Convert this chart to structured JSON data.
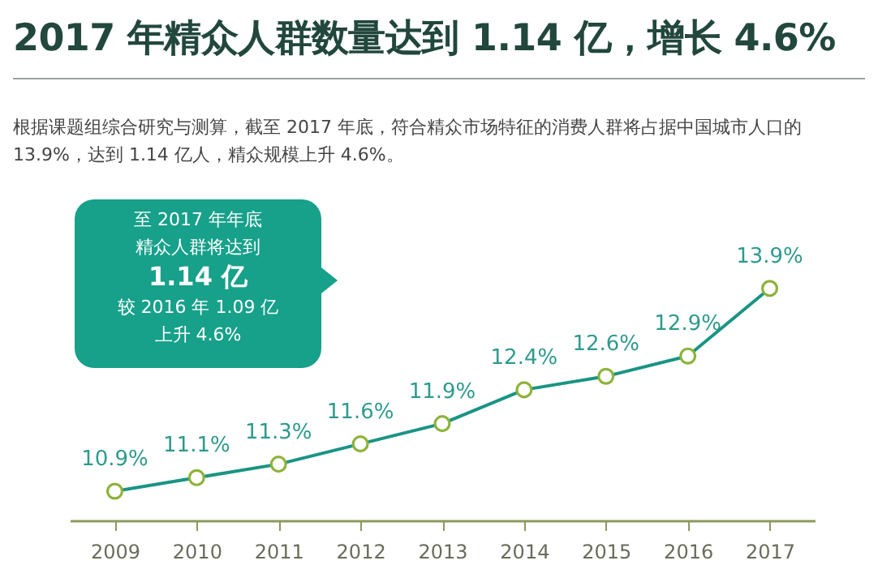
{
  "chart_data": {
    "type": "line",
    "title": "2017 年精众人群数量达到 1.14 亿，增长 4.6%",
    "subtitle": "根据课题组综合研究与测算，截至 2017 年底，符合精众市场特征的消费人群将占据中国城市人口的 13.9%，达到 1.14 亿人，精众规模上升 4.6%。",
    "annotations": [
      "至 2017 年年底",
      "精众人群将达到",
      "1.14 亿",
      "较 2016 年 1.09 亿",
      "上升 4.6%"
    ],
    "categories": [
      "2009",
      "2010",
      "2011",
      "2012",
      "2013",
      "2014",
      "2015",
      "2016",
      "2017"
    ],
    "marker": "circle",
    "series": [
      {
        "color": "#1a9484",
        "values": [
          10.9,
          11.1,
          11.3,
          11.6,
          11.9,
          12.4,
          12.6,
          12.9,
          13.9
        ],
        "value_labels": [
          "10.9%",
          "11.1%",
          "11.3%",
          "11.6%",
          "11.9%",
          "12.4%",
          "12.6%",
          "12.9%",
          "13.9%"
        ]
      }
    ]
  }
}
